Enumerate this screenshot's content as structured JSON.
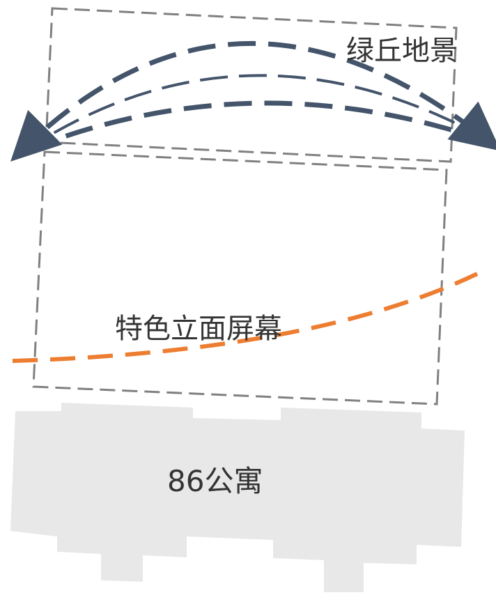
{
  "labels": {
    "upper_zone": "绿丘地景",
    "middle_zone": "特色立面屏幕",
    "building": "86公寓"
  },
  "colors": {
    "zone_outline": "#808080",
    "view_arcs": "#44546a",
    "facade_line": "#ed7d31",
    "building_fill": "#e8e8e8",
    "text": "#333333"
  },
  "icons": {
    "view_arrows": "dashed-curved-double-arrow"
  }
}
